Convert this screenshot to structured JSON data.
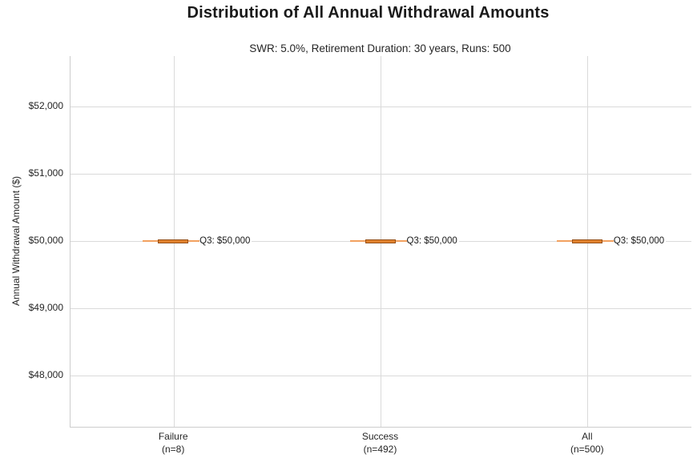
{
  "chart_data": {
    "type": "box",
    "title": "Distribution of All Annual Withdrawal Amounts",
    "subtitle": "SWR: 5.0%, Retirement Duration: 30 years, Runs: 500",
    "ylabel": "Annual Withdrawal Amount ($)",
    "xlabel": "",
    "ylim": [
      47240,
      52750
    ],
    "grid": true,
    "legend": "none",
    "yticks": [
      {
        "value": 52000,
        "label": "$52,000"
      },
      {
        "value": 51000,
        "label": "$51,000"
      },
      {
        "value": 50000,
        "label": "$50,000"
      },
      {
        "value": 49000,
        "label": "$49,000"
      },
      {
        "value": 48000,
        "label": "$48,000"
      }
    ],
    "categories": [
      {
        "label": "Failure",
        "sublabel": "(n=8)",
        "n": 8
      },
      {
        "label": "Success",
        "sublabel": "(n=492)",
        "n": 492
      },
      {
        "label": "All",
        "sublabel": "(n=500)",
        "n": 500
      }
    ],
    "series": [
      {
        "name": "Failure",
        "min": 50000,
        "q1": 50000,
        "median": 50000,
        "q3": 50000,
        "max": 50000,
        "annotation": "Q3: $50,000"
      },
      {
        "name": "Success",
        "min": 50000,
        "q1": 50000,
        "median": 50000,
        "q3": 50000,
        "max": 50000,
        "annotation": "Q3: $50,000"
      },
      {
        "name": "All",
        "min": 50000,
        "q1": 50000,
        "median": 50000,
        "q3": 50000,
        "max": 50000,
        "annotation": "Q3: $50,000"
      }
    ],
    "colors": {
      "whisker": "#f2a15f",
      "box_fill": "#e1812c",
      "box_edge": "#96511a",
      "gridline": "#dadada",
      "spine": "#cccccc",
      "text": "#262626"
    }
  }
}
